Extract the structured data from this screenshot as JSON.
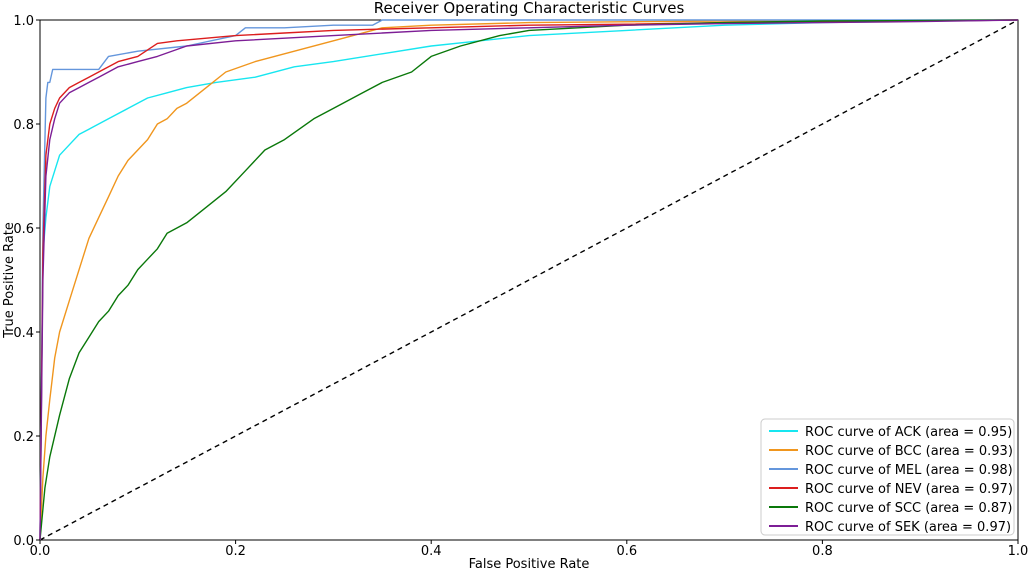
{
  "chart_data": {
    "type": "line",
    "title": "Receiver Operating Characteristic Curves",
    "xlabel": "False Positive Rate",
    "ylabel": "True Positive Rate",
    "xlim": [
      0.0,
      1.0
    ],
    "ylim": [
      0.0,
      1.0
    ],
    "xticks": [
      "0.0",
      "0.2",
      "0.4",
      "0.6",
      "0.8",
      "1.0"
    ],
    "yticks": [
      "0.0",
      "0.2",
      "0.4",
      "0.6",
      "0.8",
      "1.0"
    ],
    "grid": false,
    "legend_position": "lower-right",
    "reference_line": {
      "x": [
        0,
        1
      ],
      "y": [
        0,
        1
      ],
      "style": "dashed",
      "color": "#000000"
    },
    "series": [
      {
        "name": "ROC curve of ACK (area = 0.95)",
        "color": "#17e6f0",
        "x": [
          0,
          0.003,
          0.006,
          0.01,
          0.015,
          0.02,
          0.03,
          0.04,
          0.05,
          0.07,
          0.09,
          0.11,
          0.13,
          0.15,
          0.18,
          0.22,
          0.26,
          0.3,
          0.35,
          0.4,
          0.45,
          0.5,
          0.6,
          0.7,
          0.8,
          0.9,
          1.0
        ],
        "y": [
          0,
          0.55,
          0.62,
          0.68,
          0.71,
          0.74,
          0.76,
          0.78,
          0.79,
          0.81,
          0.83,
          0.85,
          0.86,
          0.87,
          0.88,
          0.89,
          0.91,
          0.92,
          0.935,
          0.95,
          0.96,
          0.97,
          0.98,
          0.99,
          0.995,
          0.998,
          1.0
        ]
      },
      {
        "name": "ROC curve of BCC (area = 0.93)",
        "color": "#f0961e",
        "x": [
          0,
          0.003,
          0.006,
          0.01,
          0.015,
          0.02,
          0.03,
          0.04,
          0.05,
          0.06,
          0.07,
          0.08,
          0.09,
          0.1,
          0.11,
          0.12,
          0.13,
          0.14,
          0.15,
          0.17,
          0.19,
          0.22,
          0.26,
          0.3,
          0.35,
          0.4,
          0.5,
          0.7,
          1.0
        ],
        "y": [
          0,
          0.12,
          0.2,
          0.27,
          0.35,
          0.4,
          0.46,
          0.52,
          0.58,
          0.62,
          0.66,
          0.7,
          0.73,
          0.75,
          0.77,
          0.8,
          0.81,
          0.83,
          0.84,
          0.87,
          0.9,
          0.92,
          0.94,
          0.96,
          0.985,
          0.99,
          0.995,
          0.998,
          1.0
        ]
      },
      {
        "name": "ROC curve of MEL (area = 0.98)",
        "color": "#6496dc",
        "x": [
          0,
          0.003,
          0.006,
          0.008,
          0.01,
          0.013,
          0.06,
          0.07,
          0.1,
          0.15,
          0.2,
          0.21,
          0.25,
          0.3,
          0.34,
          0.35,
          0.5,
          0.7,
          1.0
        ],
        "y": [
          0,
          0.6,
          0.85,
          0.88,
          0.88,
          0.905,
          0.905,
          0.93,
          0.94,
          0.95,
          0.97,
          0.985,
          0.985,
          0.99,
          0.99,
          1.0,
          1.0,
          1.0,
          1.0
        ]
      },
      {
        "name": "ROC curve of NEV (area = 0.97)",
        "color": "#dc1e1e",
        "x": [
          0,
          0.003,
          0.006,
          0.01,
          0.015,
          0.02,
          0.03,
          0.04,
          0.05,
          0.06,
          0.08,
          0.1,
          0.12,
          0.14,
          0.17,
          0.2,
          0.25,
          0.3,
          0.4,
          0.5,
          0.6,
          0.7,
          0.8,
          0.9,
          1.0
        ],
        "y": [
          0,
          0.55,
          0.74,
          0.8,
          0.83,
          0.85,
          0.87,
          0.88,
          0.89,
          0.9,
          0.92,
          0.93,
          0.955,
          0.96,
          0.965,
          0.97,
          0.975,
          0.98,
          0.985,
          0.99,
          0.992,
          0.995,
          0.997,
          0.998,
          1.0
        ]
      },
      {
        "name": "ROC curve of SCC (area = 0.87)",
        "color": "#0a780a",
        "x": [
          0,
          0.005,
          0.01,
          0.02,
          0.03,
          0.04,
          0.05,
          0.06,
          0.07,
          0.08,
          0.09,
          0.1,
          0.11,
          0.12,
          0.13,
          0.14,
          0.15,
          0.17,
          0.19,
          0.21,
          0.23,
          0.25,
          0.28,
          0.3,
          0.33,
          0.35,
          0.38,
          0.4,
          0.43,
          0.47,
          0.5,
          0.6,
          0.7,
          0.8,
          1.0
        ],
        "y": [
          0,
          0.1,
          0.16,
          0.24,
          0.31,
          0.36,
          0.39,
          0.42,
          0.44,
          0.47,
          0.49,
          0.52,
          0.54,
          0.56,
          0.59,
          0.6,
          0.61,
          0.64,
          0.67,
          0.71,
          0.75,
          0.77,
          0.81,
          0.83,
          0.86,
          0.88,
          0.9,
          0.93,
          0.95,
          0.97,
          0.98,
          0.99,
          0.995,
          0.998,
          1.0
        ]
      },
      {
        "name": "ROC curve of SEK (area = 0.97)",
        "color": "#7d1e96",
        "x": [
          0,
          0.003,
          0.006,
          0.01,
          0.015,
          0.02,
          0.03,
          0.04,
          0.05,
          0.06,
          0.08,
          0.1,
          0.12,
          0.15,
          0.2,
          0.25,
          0.3,
          0.35,
          0.4,
          0.5,
          0.6,
          0.7,
          0.8,
          0.9,
          1.0
        ],
        "y": [
          0,
          0.5,
          0.7,
          0.77,
          0.81,
          0.84,
          0.86,
          0.87,
          0.88,
          0.89,
          0.91,
          0.92,
          0.93,
          0.95,
          0.96,
          0.965,
          0.97,
          0.975,
          0.98,
          0.985,
          0.99,
          0.993,
          0.995,
          0.997,
          1.0
        ]
      }
    ]
  }
}
